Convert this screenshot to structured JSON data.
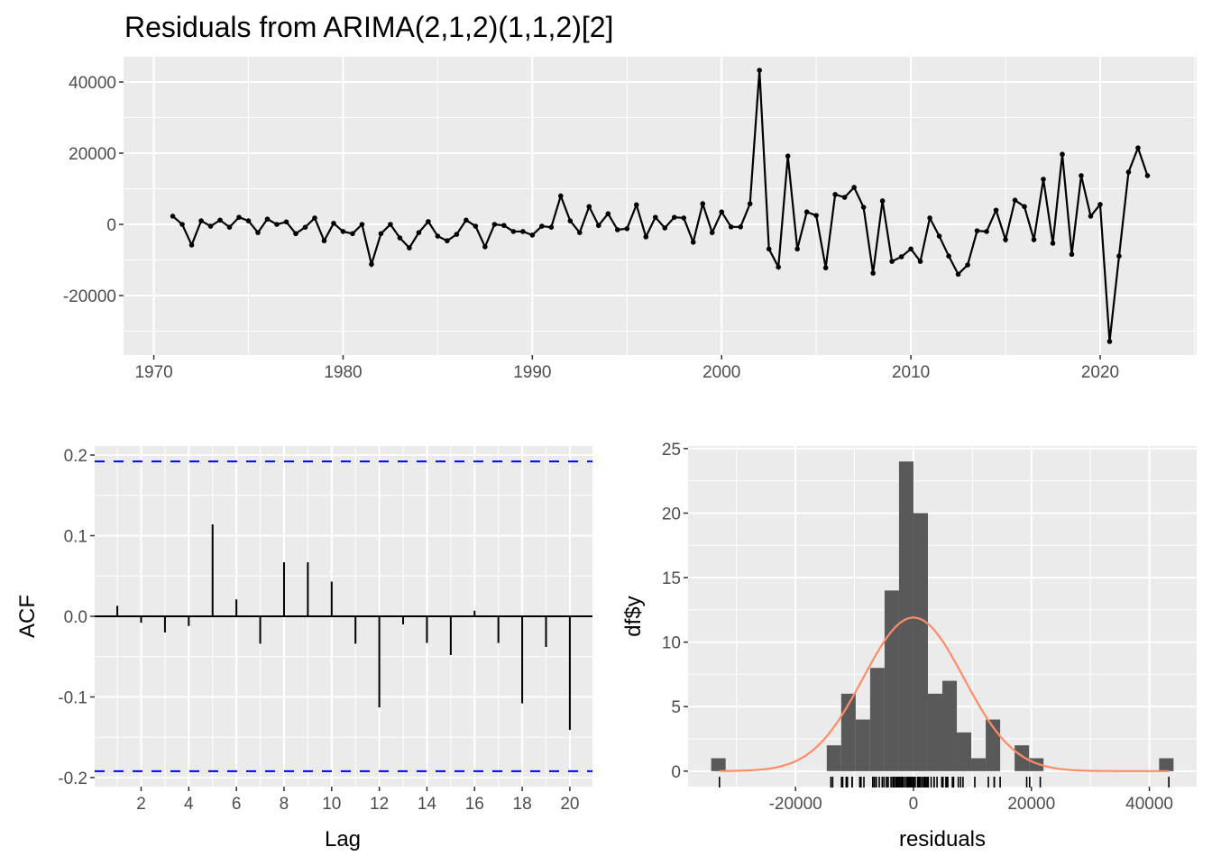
{
  "chart_data": [
    {
      "type": "line",
      "title": "Residuals from ARIMA(2,1,2)(1,1,2)[2]",
      "xlabel": "",
      "ylabel": "",
      "x_start": 1971.0,
      "x_step": 0.5,
      "xlim": [
        1968.4,
        2025.1
      ],
      "ylim": [
        -36700,
        47100
      ],
      "xticks": [
        1970,
        1980,
        1990,
        2000,
        2010,
        2020
      ],
      "xtick_labels": [
        "1970",
        "1980",
        "1990",
        "2000",
        "2010",
        "2020"
      ],
      "yticks": [
        -20000,
        0,
        20000,
        40000
      ],
      "ytick_labels": [
        "-20000",
        "0",
        "20000",
        "40000"
      ],
      "grid": true,
      "values": [
        2300,
        0,
        -5800,
        1000,
        -500,
        1200,
        -800,
        2000,
        1000,
        -2300,
        1500,
        0,
        700,
        -2600,
        -800,
        1800,
        -4600,
        300,
        -2000,
        -2600,
        0,
        -11200,
        -2600,
        0,
        -3800,
        -6600,
        -2300,
        800,
        -3300,
        -4600,
        -2800,
        1200,
        -500,
        -6300,
        0,
        -300,
        -2000,
        -2000,
        -3000,
        -500,
        -800,
        8000,
        1000,
        -2300,
        5000,
        -300,
        3000,
        -1500,
        -1200,
        5500,
        -3500,
        2000,
        -1000,
        2000,
        1800,
        -5000,
        5800,
        -2300,
        3500,
        -700,
        -700,
        5800,
        43300,
        -6900,
        -12000,
        19200,
        -6900,
        3500,
        2500,
        -12200,
        8400,
        7600,
        10400,
        4800,
        -13700,
        6600,
        -10400,
        -9100,
        -6900,
        -10400,
        1800,
        -3300,
        -8900,
        -14000,
        -11400,
        -1800,
        -2000,
        4000,
        -4300,
        6800,
        5000,
        -4300,
        12700,
        -5300,
        19700,
        -8400,
        13700,
        2300,
        5600,
        -32900,
        -8900,
        14700,
        21500,
        13700
      ]
    },
    {
      "type": "bar",
      "subtype": "acf",
      "xlabel": "Lag",
      "ylabel": "ACF",
      "xlim": [
        0.05,
        20.95
      ],
      "ylim": [
        -0.2112,
        0.2112
      ],
      "xticks": [
        2,
        4,
        6,
        8,
        10,
        12,
        14,
        16,
        18,
        20
      ],
      "xtick_labels": [
        "2",
        "4",
        "6",
        "8",
        "10",
        "12",
        "14",
        "16",
        "18",
        "20"
      ],
      "yticks": [
        -0.2,
        -0.1,
        0.0,
        0.1,
        0.2
      ],
      "ytick_labels": [
        "-0.2",
        "-0.1",
        "0.0",
        "0.1",
        "0.2"
      ],
      "lags": [
        1,
        2,
        3,
        4,
        5,
        6,
        7,
        8,
        9,
        10,
        11,
        12,
        13,
        14,
        15,
        16,
        17,
        18,
        19,
        20
      ],
      "values": [
        0.013,
        -0.008,
        -0.02,
        -0.012,
        0.114,
        0.021,
        -0.034,
        0.067,
        0.067,
        0.043,
        -0.034,
        -0.113,
        -0.01,
        -0.033,
        -0.048,
        0.007,
        -0.033,
        -0.108,
        -0.038,
        -0.141
      ],
      "confidence_bound": 0.192,
      "bound_color": "#0000ff",
      "grid": true
    },
    {
      "type": "bar",
      "subtype": "histogram",
      "xlabel": "residuals",
      "ylabel": "df$y",
      "xlim": [
        -38220,
        48020
      ],
      "ylim": [
        -1.2,
        25.2
      ],
      "xticks": [
        -20000,
        0,
        20000,
        40000
      ],
      "xtick_labels": [
        "-20000",
        "0",
        "20000",
        "40000"
      ],
      "yticks": [
        0,
        5,
        10,
        15,
        20,
        25
      ],
      "ytick_labels": [
        "0",
        "5",
        "10",
        "15",
        "20",
        "25"
      ],
      "bin_width": 2450,
      "bins": [
        {
          "start": -34300,
          "count": 1
        },
        {
          "start": -14700,
          "count": 2
        },
        {
          "start": -12250,
          "count": 6
        },
        {
          "start": -9800,
          "count": 4
        },
        {
          "start": -7350,
          "count": 8
        },
        {
          "start": -4900,
          "count": 14
        },
        {
          "start": -2450,
          "count": 24
        },
        {
          "start": 0,
          "count": 20
        },
        {
          "start": 2450,
          "count": 6
        },
        {
          "start": 4900,
          "count": 7
        },
        {
          "start": 7350,
          "count": 3
        },
        {
          "start": 9800,
          "count": 1
        },
        {
          "start": 12250,
          "count": 4
        },
        {
          "start": 14700,
          "count": 0
        },
        {
          "start": 17150,
          "count": 2
        },
        {
          "start": 19600,
          "count": 1
        },
        {
          "start": 41650,
          "count": 1
        }
      ],
      "bar_color": "#595959",
      "normal_curve": {
        "mean": 0,
        "sd": 8540,
        "n": 104,
        "color": "#ff8c69"
      },
      "rug": true,
      "grid": true
    }
  ]
}
